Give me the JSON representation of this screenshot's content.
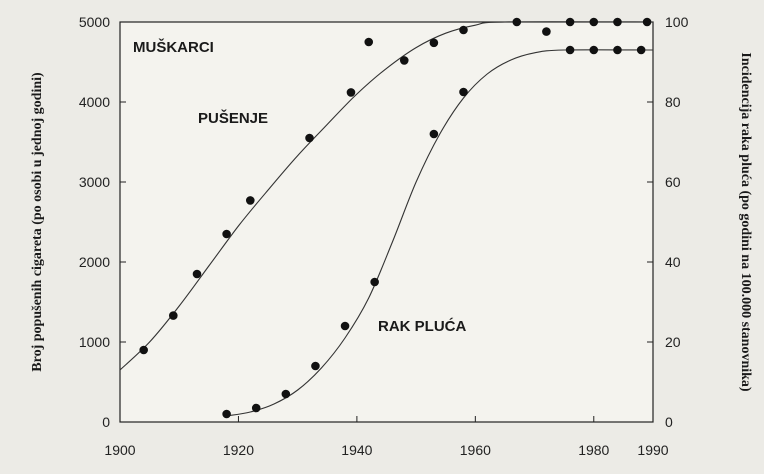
{
  "chart_data": {
    "type": "line",
    "title": "",
    "xlabel": "",
    "x_ticks": [
      "1900",
      "1920",
      "1940",
      "1960",
      "1980",
      "1990"
    ],
    "xlim": [
      1900,
      1990
    ],
    "ylabel_left": "Broj popušenih cigareta (po osobi u jednoj godini)",
    "ylim_left": [
      0,
      5000
    ],
    "y_ticks_left": [
      "0",
      "1000",
      "2000",
      "3000",
      "4000",
      "5000"
    ],
    "ylabel_right": "Incidencija raka pluća (po godini na 100.000 stanovnika)",
    "ylim_right": [
      0,
      100
    ],
    "y_ticks_right": [
      "0",
      "20",
      "40",
      "60",
      "80",
      "100"
    ],
    "grid": false,
    "annotations": {
      "group": "MUŠKARCI",
      "smoking": "PUŠENJE",
      "cancer": "RAK PLUĆA"
    },
    "series": [
      {
        "id": "smoking",
        "axis": "left",
        "points": [
          {
            "x": 1904,
            "y": 900
          },
          {
            "x": 1909,
            "y": 1330
          },
          {
            "x": 1913,
            "y": 1850
          },
          {
            "x": 1918,
            "y": 2350
          },
          {
            "x": 1922,
            "y": 2770
          },
          {
            "x": 1932,
            "y": 3550
          },
          {
            "x": 1939,
            "y": 4120
          },
          {
            "x": 1942,
            "y": 4750
          },
          {
            "x": 1948,
            "y": 4520
          },
          {
            "x": 1953,
            "y": 4740
          },
          {
            "x": 1958,
            "y": 4900
          },
          {
            "x": 1967,
            "y": 5000
          },
          {
            "x": 1972,
            "y": 4880
          },
          {
            "x": 1976,
            "y": 5000
          },
          {
            "x": 1980,
            "y": 5000
          },
          {
            "x": 1984,
            "y": 5000
          },
          {
            "x": 1989,
            "y": 5000
          }
        ],
        "curve": [
          {
            "x": 1900,
            "y": 650
          },
          {
            "x": 1905,
            "y": 1000
          },
          {
            "x": 1910,
            "y": 1450
          },
          {
            "x": 1915,
            "y": 1950
          },
          {
            "x": 1920,
            "y": 2450
          },
          {
            "x": 1925,
            "y": 2900
          },
          {
            "x": 1930,
            "y": 3330
          },
          {
            "x": 1935,
            "y": 3720
          },
          {
            "x": 1940,
            "y": 4100
          },
          {
            "x": 1945,
            "y": 4420
          },
          {
            "x": 1950,
            "y": 4680
          },
          {
            "x": 1955,
            "y": 4860
          },
          {
            "x": 1960,
            "y": 4960
          },
          {
            "x": 1965,
            "y": 5000
          },
          {
            "x": 1990,
            "y": 5000
          }
        ]
      },
      {
        "id": "lung_cancer",
        "axis": "right",
        "points": [
          {
            "x": 1918,
            "y": 2
          },
          {
            "x": 1923,
            "y": 3.5
          },
          {
            "x": 1928,
            "y": 7
          },
          {
            "x": 1933,
            "y": 14
          },
          {
            "x": 1938,
            "y": 24
          },
          {
            "x": 1943,
            "y": 35
          },
          {
            "x": 1953,
            "y": 72
          },
          {
            "x": 1958,
            "y": 82.5
          },
          {
            "x": 1976,
            "y": 93
          },
          {
            "x": 1980,
            "y": 93
          },
          {
            "x": 1984,
            "y": 93
          },
          {
            "x": 1988,
            "y": 93
          }
        ],
        "curve": [
          {
            "x": 1918,
            "y": 1.5
          },
          {
            "x": 1922,
            "y": 2.5
          },
          {
            "x": 1926,
            "y": 4.5
          },
          {
            "x": 1930,
            "y": 8
          },
          {
            "x": 1934,
            "y": 13.5
          },
          {
            "x": 1938,
            "y": 21
          },
          {
            "x": 1942,
            "y": 31
          },
          {
            "x": 1946,
            "y": 45
          },
          {
            "x": 1950,
            "y": 60
          },
          {
            "x": 1954,
            "y": 72
          },
          {
            "x": 1958,
            "y": 81
          },
          {
            "x": 1962,
            "y": 87
          },
          {
            "x": 1966,
            "y": 90.5
          },
          {
            "x": 1970,
            "y": 92.3
          },
          {
            "x": 1975,
            "y": 93
          },
          {
            "x": 1990,
            "y": 93
          }
        ]
      }
    ]
  }
}
